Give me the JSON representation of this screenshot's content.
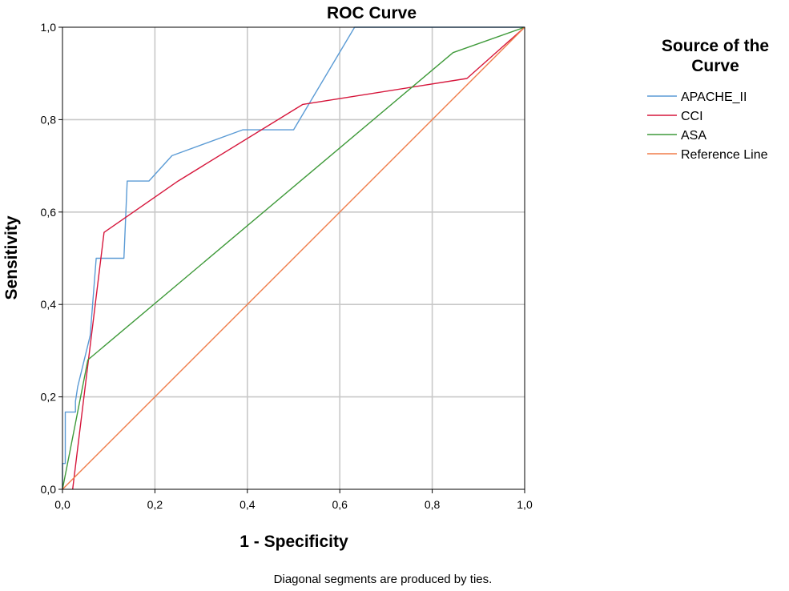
{
  "chart_data": {
    "type": "line",
    "title": "ROC Curve",
    "xlabel": "1 - Specificity",
    "ylabel": "Sensitivity",
    "xlim": [
      0,
      1
    ],
    "ylim": [
      0,
      1
    ],
    "grid": true,
    "x_ticks": [
      0,
      0.2,
      0.4,
      0.6,
      0.8,
      1.0
    ],
    "x_tick_labels": [
      "0,0",
      "0,2",
      "0,4",
      "0,6",
      "0,8",
      "1,0"
    ],
    "y_ticks": [
      0,
      0.2,
      0.4,
      0.6,
      0.8,
      1.0
    ],
    "y_tick_labels": [
      "0,0",
      "0,2",
      "0,4",
      "0,6",
      "0,8",
      "1,0"
    ],
    "legend": {
      "title_lines": [
        "Source of the",
        "Curve"
      ],
      "placement": "right"
    },
    "series": [
      {
        "name": "APACHE_II",
        "color": "#5b9bd5",
        "points": [
          [
            0,
            0
          ],
          [
            0,
            0.056
          ],
          [
            0.006,
            0.056
          ],
          [
            0.006,
            0.167
          ],
          [
            0.028,
            0.167
          ],
          [
            0.028,
            0.19
          ],
          [
            0.033,
            0.222
          ],
          [
            0.06,
            0.333
          ],
          [
            0.073,
            0.5
          ],
          [
            0.133,
            0.5
          ],
          [
            0.14,
            0.667
          ],
          [
            0.187,
            0.667
          ],
          [
            0.237,
            0.722
          ],
          [
            0.39,
            0.778
          ],
          [
            0.5,
            0.778
          ],
          [
            0.632,
            1.0
          ],
          [
            1.0,
            1.0
          ]
        ]
      },
      {
        "name": "CCI",
        "color": "#d6173c",
        "points": [
          [
            0.022,
            0
          ],
          [
            0.09,
            0.556
          ],
          [
            0.25,
            0.667
          ],
          [
            0.52,
            0.833
          ],
          [
            0.875,
            0.889
          ],
          [
            1.0,
            1.0
          ]
        ]
      },
      {
        "name": "ASA",
        "color": "#3f9a3a",
        "points": [
          [
            0,
            0
          ],
          [
            0.055,
            0.28
          ],
          [
            0.845,
            0.945
          ],
          [
            1.0,
            1.0
          ]
        ]
      },
      {
        "name": "Reference Line",
        "color": "#f07d4a",
        "points": [
          [
            0,
            0
          ],
          [
            1.0,
            1.0
          ]
        ]
      }
    ],
    "footnote": "Diagonal segments are produced by ties."
  }
}
